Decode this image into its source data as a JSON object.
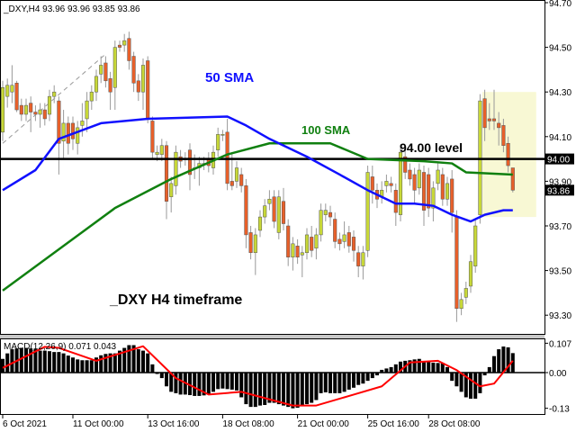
{
  "header": {
    "symbol_info": "_DXY,H4  93.96 93.96 93.85 93.86"
  },
  "annotations": {
    "sma50": "50 SMA",
    "sma100": "100 SMA",
    "level": "94.00 level",
    "timeframe": "_DXY H4 timeframe"
  },
  "colors": {
    "bull": "#c8d838",
    "bear": "#e8602a",
    "sma50": "#1010ff",
    "sma100": "#108010",
    "macd_hist": "#000000",
    "macd_signal": "#ff0000",
    "highlight": "#f8f8d4",
    "level": "#000000"
  },
  "macd_label": "MACD(12,26,9) 0.071 0.043",
  "chart_data": [
    {
      "type": "candlestick",
      "title": "_DXY,H4",
      "ylim": [
        93.2,
        94.72
      ],
      "yticks": [
        "94.70",
        "94.50",
        "94.30",
        "94.10",
        "93.90",
        "93.70",
        "93.50",
        "93.30"
      ],
      "price_badges": [
        {
          "label": "94.00",
          "value": 94.0
        },
        {
          "label": "93.86",
          "value": 93.86
        }
      ],
      "level_line": 94.0,
      "highlight_zone": {
        "from_index": 102.5,
        "to_index": 114,
        "high": 94.3,
        "low": 93.74
      },
      "trendline": [
        [
          0,
          94.07
        ],
        [
          22,
          94.47
        ]
      ],
      "ohlc": [
        [
          94.12,
          94.35,
          94.08,
          94.32
        ],
        [
          94.28,
          94.36,
          94.23,
          94.33
        ],
        [
          94.3,
          94.42,
          94.25,
          94.33
        ],
        [
          94.34,
          94.35,
          94.21,
          94.22
        ],
        [
          94.24,
          94.27,
          94.17,
          94.2
        ],
        [
          94.2,
          94.27,
          94.17,
          94.24
        ],
        [
          94.25,
          94.28,
          94.12,
          94.21
        ],
        [
          94.21,
          94.24,
          94.17,
          94.2
        ],
        [
          94.2,
          94.25,
          94.14,
          94.22
        ],
        [
          94.22,
          94.25,
          94.15,
          94.18
        ],
        [
          94.2,
          94.31,
          94.17,
          94.28
        ],
        [
          94.28,
          94.33,
          94.25,
          94.3
        ],
        [
          94.26,
          94.28,
          93.93,
          94.07
        ],
        [
          94.08,
          94.22,
          94.0,
          94.16
        ],
        [
          94.16,
          94.19,
          94.02,
          94.07
        ],
        [
          94.16,
          94.19,
          94.04,
          94.09
        ],
        [
          94.07,
          94.17,
          94.02,
          94.14
        ],
        [
          94.15,
          94.25,
          94.1,
          94.17
        ],
        [
          94.18,
          94.3,
          94.12,
          94.26
        ],
        [
          94.26,
          94.33,
          94.22,
          94.3
        ],
        [
          94.3,
          94.4,
          94.26,
          94.37
        ],
        [
          94.38,
          94.46,
          94.34,
          94.42
        ],
        [
          94.43,
          94.46,
          94.32,
          94.35
        ],
        [
          94.36,
          94.39,
          94.22,
          94.3
        ],
        [
          94.32,
          94.53,
          94.22,
          94.5
        ],
        [
          94.51,
          94.53,
          94.48,
          94.5
        ],
        [
          94.51,
          94.56,
          94.48,
          94.53
        ],
        [
          94.54,
          94.57,
          94.4,
          94.44
        ],
        [
          94.46,
          94.48,
          94.3,
          94.34
        ],
        [
          94.35,
          94.38,
          94.26,
          94.3
        ],
        [
          94.3,
          94.45,
          94.22,
          94.42
        ],
        [
          94.44,
          94.46,
          94.16,
          94.18
        ],
        [
          94.17,
          94.19,
          94.0,
          94.03
        ],
        [
          94.02,
          94.06,
          93.99,
          94.03
        ],
        [
          94.02,
          94.09,
          93.99,
          94.06
        ],
        [
          94.06,
          94.08,
          93.73,
          93.81
        ],
        [
          93.83,
          93.92,
          93.76,
          93.89
        ],
        [
          93.88,
          94.06,
          93.84,
          94.03
        ],
        [
          94.01,
          94.04,
          93.96,
          93.99
        ],
        [
          94.0,
          94.03,
          93.97,
          94.0
        ],
        [
          94.04,
          94.07,
          93.86,
          93.93
        ],
        [
          93.96,
          94.02,
          93.91,
          93.96
        ],
        [
          93.96,
          94.01,
          93.88,
          93.98
        ],
        [
          93.98,
          94.01,
          93.95,
          93.98
        ],
        [
          94.0,
          94.03,
          93.94,
          93.97
        ],
        [
          93.96,
          94.06,
          93.93,
          94.03
        ],
        [
          94.04,
          94.14,
          94.01,
          94.11
        ],
        [
          94.11,
          94.13,
          94.08,
          94.11
        ],
        [
          94.12,
          94.18,
          93.86,
          93.89
        ],
        [
          93.9,
          94.03,
          93.86,
          93.88
        ],
        [
          93.9,
          93.99,
          93.87,
          93.96
        ],
        [
          93.93,
          93.96,
          93.85,
          93.88
        ],
        [
          93.88,
          93.91,
          93.6,
          93.66
        ],
        [
          93.67,
          93.7,
          93.55,
          93.58
        ],
        [
          93.58,
          93.69,
          93.48,
          93.66
        ],
        [
          93.68,
          93.77,
          93.65,
          93.74
        ],
        [
          93.74,
          93.82,
          93.71,
          93.79
        ],
        [
          93.8,
          93.86,
          93.77,
          93.82
        ],
        [
          93.83,
          93.86,
          93.69,
          93.72
        ],
        [
          93.67,
          93.86,
          93.64,
          93.83
        ],
        [
          93.81,
          93.87,
          93.68,
          93.71
        ],
        [
          93.7,
          93.73,
          93.52,
          93.56
        ],
        [
          93.56,
          93.65,
          93.5,
          93.62
        ],
        [
          93.61,
          93.64,
          93.53,
          93.56
        ],
        [
          93.57,
          93.61,
          93.47,
          93.58
        ],
        [
          93.58,
          93.69,
          93.55,
          93.66
        ],
        [
          93.65,
          93.7,
          93.56,
          93.59
        ],
        [
          93.6,
          93.69,
          93.55,
          93.66
        ],
        [
          93.66,
          93.8,
          93.63,
          93.77
        ],
        [
          93.75,
          93.8,
          93.72,
          93.77
        ],
        [
          93.76,
          93.79,
          93.7,
          93.74
        ],
        [
          93.73,
          93.76,
          93.6,
          93.63
        ],
        [
          93.64,
          93.67,
          93.59,
          93.62
        ],
        [
          93.63,
          93.72,
          93.6,
          93.66
        ],
        [
          93.67,
          93.7,
          93.58,
          93.61
        ],
        [
          93.65,
          93.68,
          93.54,
          93.59
        ],
        [
          93.58,
          93.61,
          93.47,
          93.52
        ],
        [
          93.52,
          93.61,
          93.46,
          93.58
        ],
        [
          93.59,
          93.97,
          93.56,
          93.94
        ],
        [
          93.92,
          93.97,
          93.8,
          93.86
        ],
        [
          93.86,
          93.89,
          93.78,
          93.82
        ],
        [
          93.83,
          93.9,
          93.8,
          93.86
        ],
        [
          93.88,
          93.93,
          93.85,
          93.9
        ],
        [
          93.89,
          93.92,
          93.85,
          93.88
        ],
        [
          93.86,
          93.89,
          93.7,
          93.76
        ],
        [
          93.75,
          94.06,
          93.72,
          94.03
        ],
        [
          94.01,
          94.04,
          93.91,
          93.94
        ],
        [
          93.95,
          93.98,
          93.88,
          93.91
        ],
        [
          93.93,
          93.96,
          93.8,
          93.86
        ],
        [
          93.87,
          93.98,
          93.84,
          93.95
        ],
        [
          93.94,
          93.97,
          93.7,
          93.77
        ],
        [
          93.93,
          93.96,
          93.74,
          93.78
        ],
        [
          93.78,
          93.9,
          93.72,
          93.87
        ],
        [
          93.89,
          93.98,
          93.86,
          93.95
        ],
        [
          93.93,
          93.96,
          93.79,
          93.82
        ],
        [
          93.82,
          93.92,
          93.79,
          93.89
        ],
        [
          93.91,
          93.95,
          93.67,
          93.76
        ],
        [
          93.74,
          93.77,
          93.27,
          93.33
        ],
        [
          93.33,
          93.4,
          93.3,
          93.37
        ],
        [
          93.38,
          93.45,
          93.35,
          93.42
        ],
        [
          93.43,
          93.57,
          93.4,
          93.54
        ],
        [
          93.52,
          93.73,
          93.49,
          93.7
        ],
        [
          93.75,
          94.29,
          93.71,
          94.26
        ],
        [
          94.27,
          94.31,
          94.08,
          94.14
        ],
        [
          94.18,
          94.25,
          94.13,
          94.17
        ],
        [
          94.18,
          94.31,
          94.13,
          94.17
        ],
        [
          94.16,
          94.21,
          94.06,
          94.14
        ],
        [
          94.15,
          94.18,
          94.03,
          94.06
        ],
        [
          94.07,
          94.1,
          93.94,
          93.97
        ],
        [
          93.96,
          93.96,
          93.85,
          93.86
        ]
      ],
      "sma50": [
        [
          0,
          93.86
        ],
        [
          7,
          93.95
        ],
        [
          12,
          94.09
        ],
        [
          21,
          94.16
        ],
        [
          31,
          94.18
        ],
        [
          48,
          94.19
        ],
        [
          52,
          94.15
        ],
        [
          57,
          94.09
        ],
        [
          65,
          94.01
        ],
        [
          72,
          93.93
        ],
        [
          78,
          93.86
        ],
        [
          84,
          93.8
        ],
        [
          88,
          93.8
        ],
        [
          92,
          93.79
        ],
        [
          96,
          93.75
        ],
        [
          100,
          93.72
        ],
        [
          103,
          93.75
        ],
        [
          107,
          93.77
        ],
        [
          109,
          93.77
        ]
      ],
      "sma100": [
        [
          0,
          93.41
        ],
        [
          24,
          93.78
        ],
        [
          36,
          93.91
        ],
        [
          48,
          94.02
        ],
        [
          57,
          94.07
        ],
        [
          70,
          94.07
        ],
        [
          78,
          94.0
        ],
        [
          90,
          93.99
        ],
        [
          96,
          93.98
        ],
        [
          99,
          93.94
        ],
        [
          109,
          93.93
        ]
      ],
      "x_labels": [
        {
          "index": 0,
          "label": "6 Oct 2021"
        },
        {
          "index": 15,
          "label": "11 Oct 00:00"
        },
        {
          "index": 31,
          "label": "13 Oct 16:00"
        },
        {
          "index": 47,
          "label": "18 Oct 08:00"
        },
        {
          "index": 63,
          "label": "21 Oct 00:00"
        },
        {
          "index": 78,
          "label": "25 Oct 16:00"
        },
        {
          "index": 91,
          "label": "28 Oct 08:00"
        }
      ]
    },
    {
      "type": "bar",
      "title": "MACD(12,26,9)",
      "ylim": [
        -0.135,
        0.112
      ],
      "yticks": [
        "0.107",
        "0.00",
        "-0.13"
      ],
      "histogram": [
        0.05,
        0.07,
        0.085,
        0.088,
        0.09,
        0.09,
        0.088,
        0.085,
        0.08,
        0.08,
        0.078,
        0.075,
        0.075,
        0.07,
        0.062,
        0.055,
        0.048,
        0.045,
        0.045,
        0.045,
        0.055,
        0.063,
        0.068,
        0.07,
        0.07,
        0.08,
        0.09,
        0.1,
        0.1,
        0.085,
        0.08,
        0.07,
        0.03,
        -0.005,
        -0.02,
        -0.05,
        -0.07,
        -0.075,
        -0.08,
        -0.08,
        -0.082,
        -0.085,
        -0.085,
        -0.083,
        -0.08,
        -0.07,
        -0.06,
        -0.058,
        -0.06,
        -0.062,
        -0.065,
        -0.09,
        -0.115,
        -0.125,
        -0.125,
        -0.12,
        -0.118,
        -0.11,
        -0.11,
        -0.115,
        -0.12,
        -0.125,
        -0.13,
        -0.128,
        -0.12,
        -0.115,
        -0.11,
        -0.1,
        -0.075,
        -0.072,
        -0.075,
        -0.075,
        -0.075,
        -0.07,
        -0.062,
        -0.055,
        -0.045,
        -0.04,
        -0.03,
        -0.02,
        -0.01,
        0.01,
        0.015,
        0.02,
        0.03,
        0.04,
        0.043,
        0.045,
        0.048,
        0.05,
        0.04,
        0.038,
        0.036,
        0.035,
        0.035,
        0.02,
        -0.03,
        -0.05,
        -0.07,
        -0.09,
        -0.095,
        -0.095,
        -0.075,
        -0.01,
        0.02,
        0.06,
        0.085,
        0.095,
        0.092,
        0.071
      ],
      "signal": [
        [
          0,
          0.017
        ],
        [
          9,
          0.094
        ],
        [
          12,
          0.09
        ],
        [
          20,
          0.043
        ],
        [
          30,
          0.096
        ],
        [
          37,
          -0.02
        ],
        [
          44,
          -0.08
        ],
        [
          51,
          -0.07
        ],
        [
          62,
          -0.12
        ],
        [
          67,
          -0.12
        ],
        [
          75,
          -0.08
        ],
        [
          81,
          -0.05
        ],
        [
          87,
          0.037
        ],
        [
          93,
          0.043
        ],
        [
          97,
          0.009
        ],
        [
          102,
          -0.05
        ],
        [
          105,
          -0.04
        ],
        [
          109,
          0.043
        ]
      ]
    }
  ]
}
